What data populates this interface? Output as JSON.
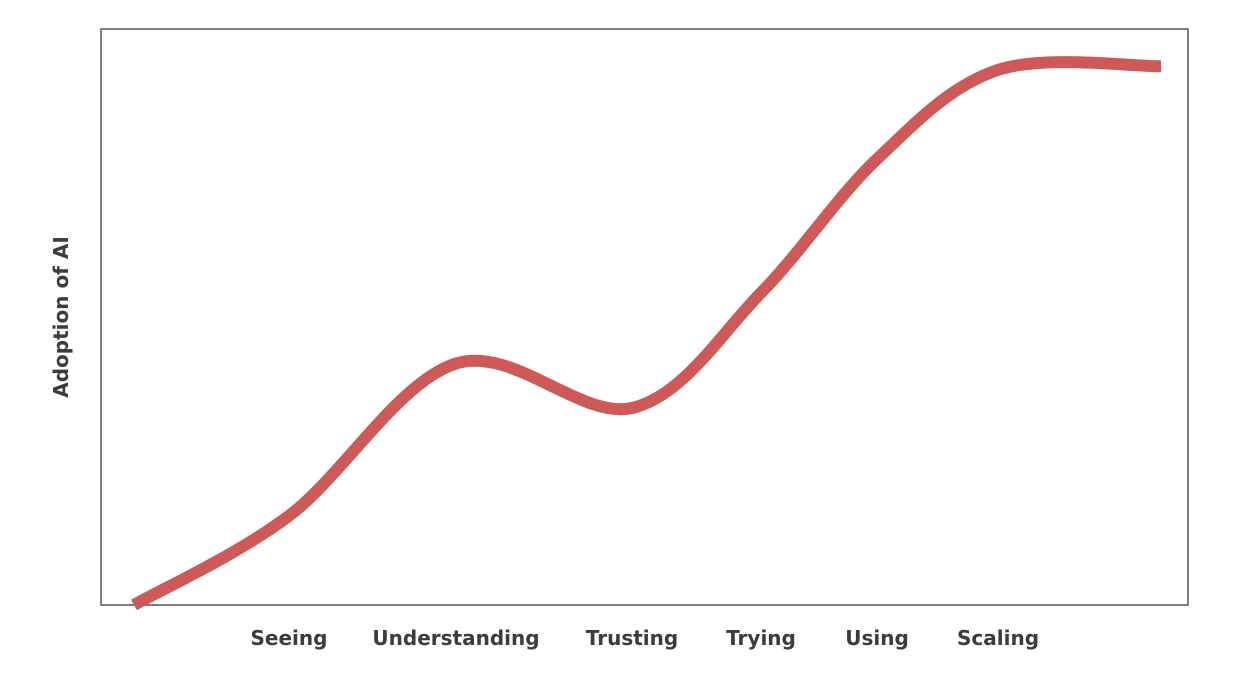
{
  "chart_data": {
    "type": "line",
    "title": "",
    "xlabel": "",
    "ylabel": "Adoption of AI",
    "categories": [
      "Seeing",
      "Understanding",
      "Trusting",
      "Trying",
      "Using",
      "Scaling"
    ],
    "series": [
      {
        "values": [
          2.4,
          6.5,
          5.3,
          8.4,
          12.0,
          14.4
        ],
        "color": "#cd5a58"
      }
    ],
    "curve_start": 0,
    "curve_end": 14.5,
    "grid": false,
    "legend": "none",
    "ylim": [
      0,
      15.5
    ],
    "y_ticks_shown": false
  }
}
